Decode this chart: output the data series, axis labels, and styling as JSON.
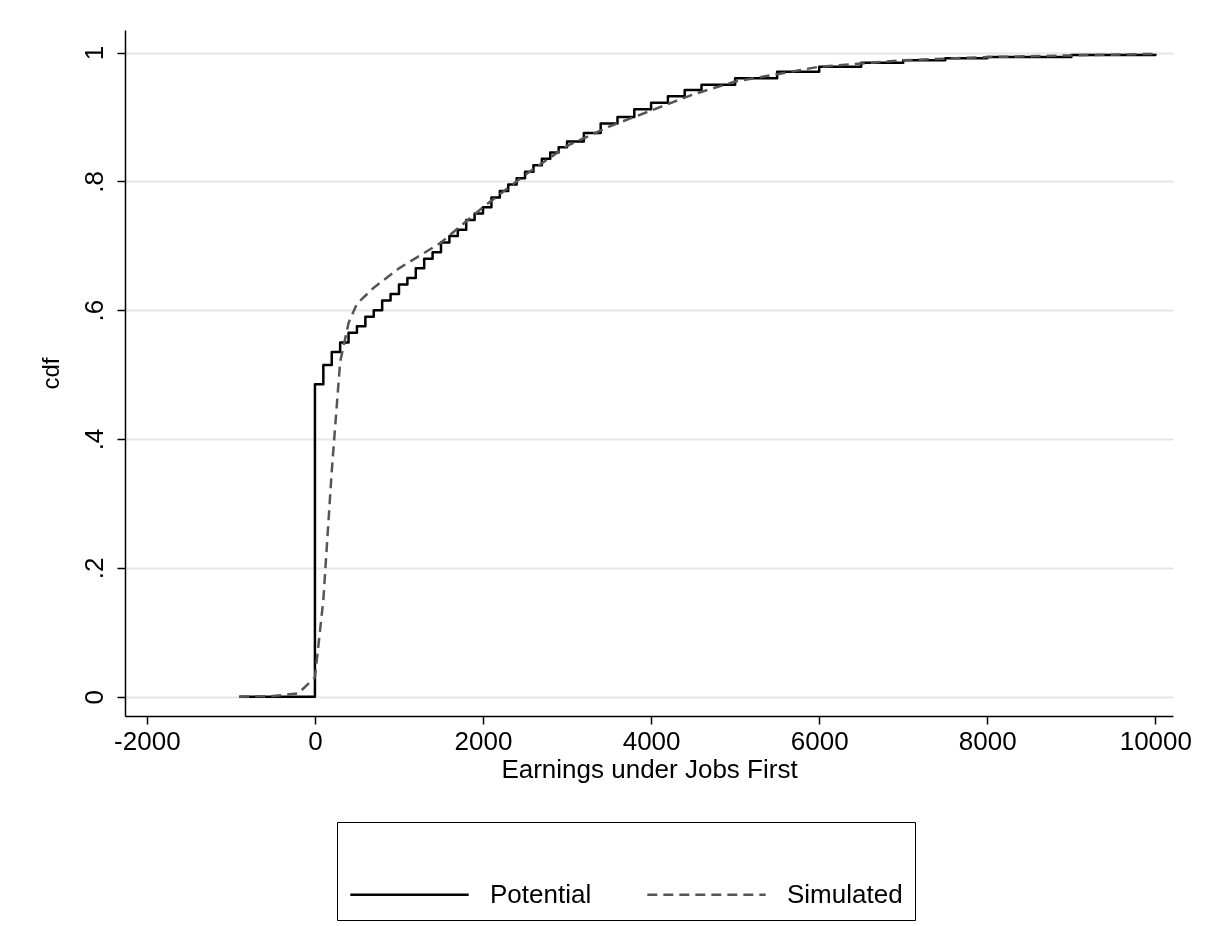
{
  "chart_data": {
    "type": "line",
    "xlabel": "Earnings under Jobs First",
    "ylabel": "cdf",
    "xlim": [
      -2260,
      10210
    ],
    "ylim": [
      -0.03,
      1.035
    ],
    "xticks": [
      -2000,
      0,
      2000,
      4000,
      6000,
      8000,
      10000
    ],
    "yticks": [
      0,
      {
        "value": 0.2,
        "label": ".2"
      },
      {
        "value": 0.4,
        "label": ".4"
      },
      {
        "value": 0.6,
        "label": ".6"
      },
      {
        "value": 0.8,
        "label": ".8"
      },
      1
    ],
    "grid": "y",
    "legend": "bottom",
    "series": [
      {
        "name": "Potential",
        "type": "step",
        "color": "#000000",
        "line_style": "solid",
        "x": [
          -900,
          0,
          100,
          200,
          300,
          400,
          500,
          600,
          700,
          800,
          900,
          1000,
          1100,
          1200,
          1300,
          1400,
          1500,
          1600,
          1700,
          1800,
          1900,
          2000,
          2100,
          2200,
          2300,
          2400,
          2500,
          2600,
          2700,
          2800,
          2900,
          3000,
          3200,
          3400,
          3600,
          3800,
          4000,
          4200,
          4400,
          4600,
          5000,
          5500,
          6000,
          6500,
          7000,
          7500,
          8000,
          9000,
          10000
        ],
        "values": [
          0,
          0.485,
          0.515,
          0.535,
          0.55,
          0.565,
          0.575,
          0.59,
          0.6,
          0.615,
          0.625,
          0.64,
          0.65,
          0.665,
          0.68,
          0.69,
          0.705,
          0.715,
          0.725,
          0.74,
          0.75,
          0.76,
          0.775,
          0.785,
          0.795,
          0.805,
          0.815,
          0.825,
          0.835,
          0.845,
          0.853,
          0.862,
          0.875,
          0.89,
          0.9,
          0.912,
          0.922,
          0.932,
          0.942,
          0.95,
          0.96,
          0.97,
          0.978,
          0.984,
          0.988,
          0.991,
          0.993,
          0.996,
          0.998
        ]
      },
      {
        "name": "Simulated",
        "color": "#555555",
        "line_style": "dashed",
        "x": [
          -900,
          -500,
          -200,
          0,
          100,
          200,
          300,
          400,
          500,
          700,
          1000,
          1500,
          2000,
          2500,
          3000,
          3500,
          4000,
          4500,
          5000,
          6000,
          7000,
          8000,
          10000
        ],
        "values": [
          0,
          0.001,
          0.005,
          0.03,
          0.15,
          0.35,
          0.52,
          0.58,
          0.61,
          0.635,
          0.665,
          0.705,
          0.76,
          0.81,
          0.855,
          0.885,
          0.91,
          0.935,
          0.955,
          0.978,
          0.988,
          0.993,
          0.998
        ]
      }
    ]
  }
}
